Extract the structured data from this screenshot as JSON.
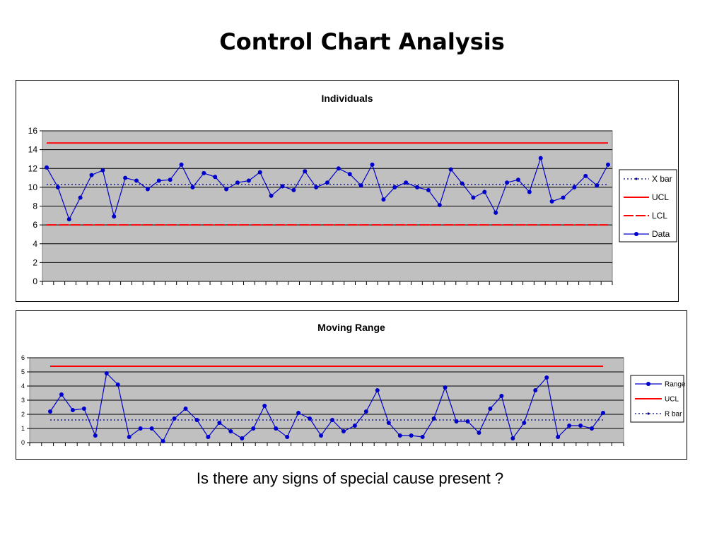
{
  "page": {
    "title": "Control Chart Analysis",
    "question": "Is there any signs of special cause present ?"
  },
  "colors": {
    "plot_bg": "#c0c0c0",
    "data_line": "#0000cc",
    "control_limit": "#ff0000",
    "center_line": "#000080",
    "grid": "#000000"
  },
  "chart_data": [
    {
      "type": "line",
      "title": "Individuals",
      "xlabel": "",
      "ylabel": "",
      "ylim": [
        0,
        16
      ],
      "yticks": [
        0,
        2,
        4,
        6,
        8,
        10,
        12,
        14,
        16
      ],
      "grid": true,
      "legend_position": "right",
      "series": [
        {
          "name": "X bar",
          "style": "dotted",
          "constant": 10.3
        },
        {
          "name": "UCL",
          "style": "solid",
          "constant": 14.7
        },
        {
          "name": "LCL",
          "style": "dashed",
          "constant": 6.0
        },
        {
          "name": "Data",
          "style": "line-marker",
          "values": [
            12.1,
            10.0,
            6.6,
            8.9,
            11.3,
            11.8,
            6.9,
            11.0,
            10.7,
            9.8,
            10.7,
            10.8,
            12.4,
            10.0,
            11.5,
            11.1,
            9.8,
            10.5,
            10.7,
            11.6,
            9.1,
            10.1,
            9.7,
            11.7,
            10.0,
            10.5,
            12.0,
            11.4,
            10.2,
            12.4,
            8.7,
            10.0,
            10.5,
            10.0,
            9.7,
            8.1,
            11.9,
            10.4,
            8.9,
            9.5,
            7.3,
            10.5,
            10.8,
            9.5,
            13.1,
            8.5,
            8.9,
            10.0,
            11.2,
            10.2,
            12.4
          ]
        }
      ]
    },
    {
      "type": "line",
      "title": "Moving Range",
      "xlabel": "",
      "ylabel": "",
      "ylim": [
        0,
        6
      ],
      "yticks": [
        0,
        1,
        2,
        3,
        4,
        5,
        6
      ],
      "grid": true,
      "legend_position": "right",
      "series": [
        {
          "name": "Range",
          "style": "line-marker",
          "values": [
            2.2,
            3.4,
            2.3,
            2.4,
            0.5,
            4.9,
            4.1,
            0.4,
            1.0,
            1.0,
            0.1,
            1.7,
            2.4,
            1.6,
            0.4,
            1.4,
            0.8,
            0.3,
            1.0,
            2.6,
            1.0,
            0.4,
            2.1,
            1.7,
            0.5,
            1.6,
            0.8,
            1.2,
            2.2,
            3.7,
            1.4,
            0.5,
            0.5,
            0.4,
            1.7,
            3.9,
            1.5,
            1.5,
            0.7,
            2.4,
            3.3,
            0.3,
            1.4,
            3.7,
            4.6,
            0.4,
            1.2,
            1.2,
            1.0,
            2.1
          ]
        },
        {
          "name": "UCL",
          "style": "solid",
          "constant": 5.4
        },
        {
          "name": "R bar",
          "style": "dotted",
          "constant": 1.6
        }
      ]
    }
  ]
}
